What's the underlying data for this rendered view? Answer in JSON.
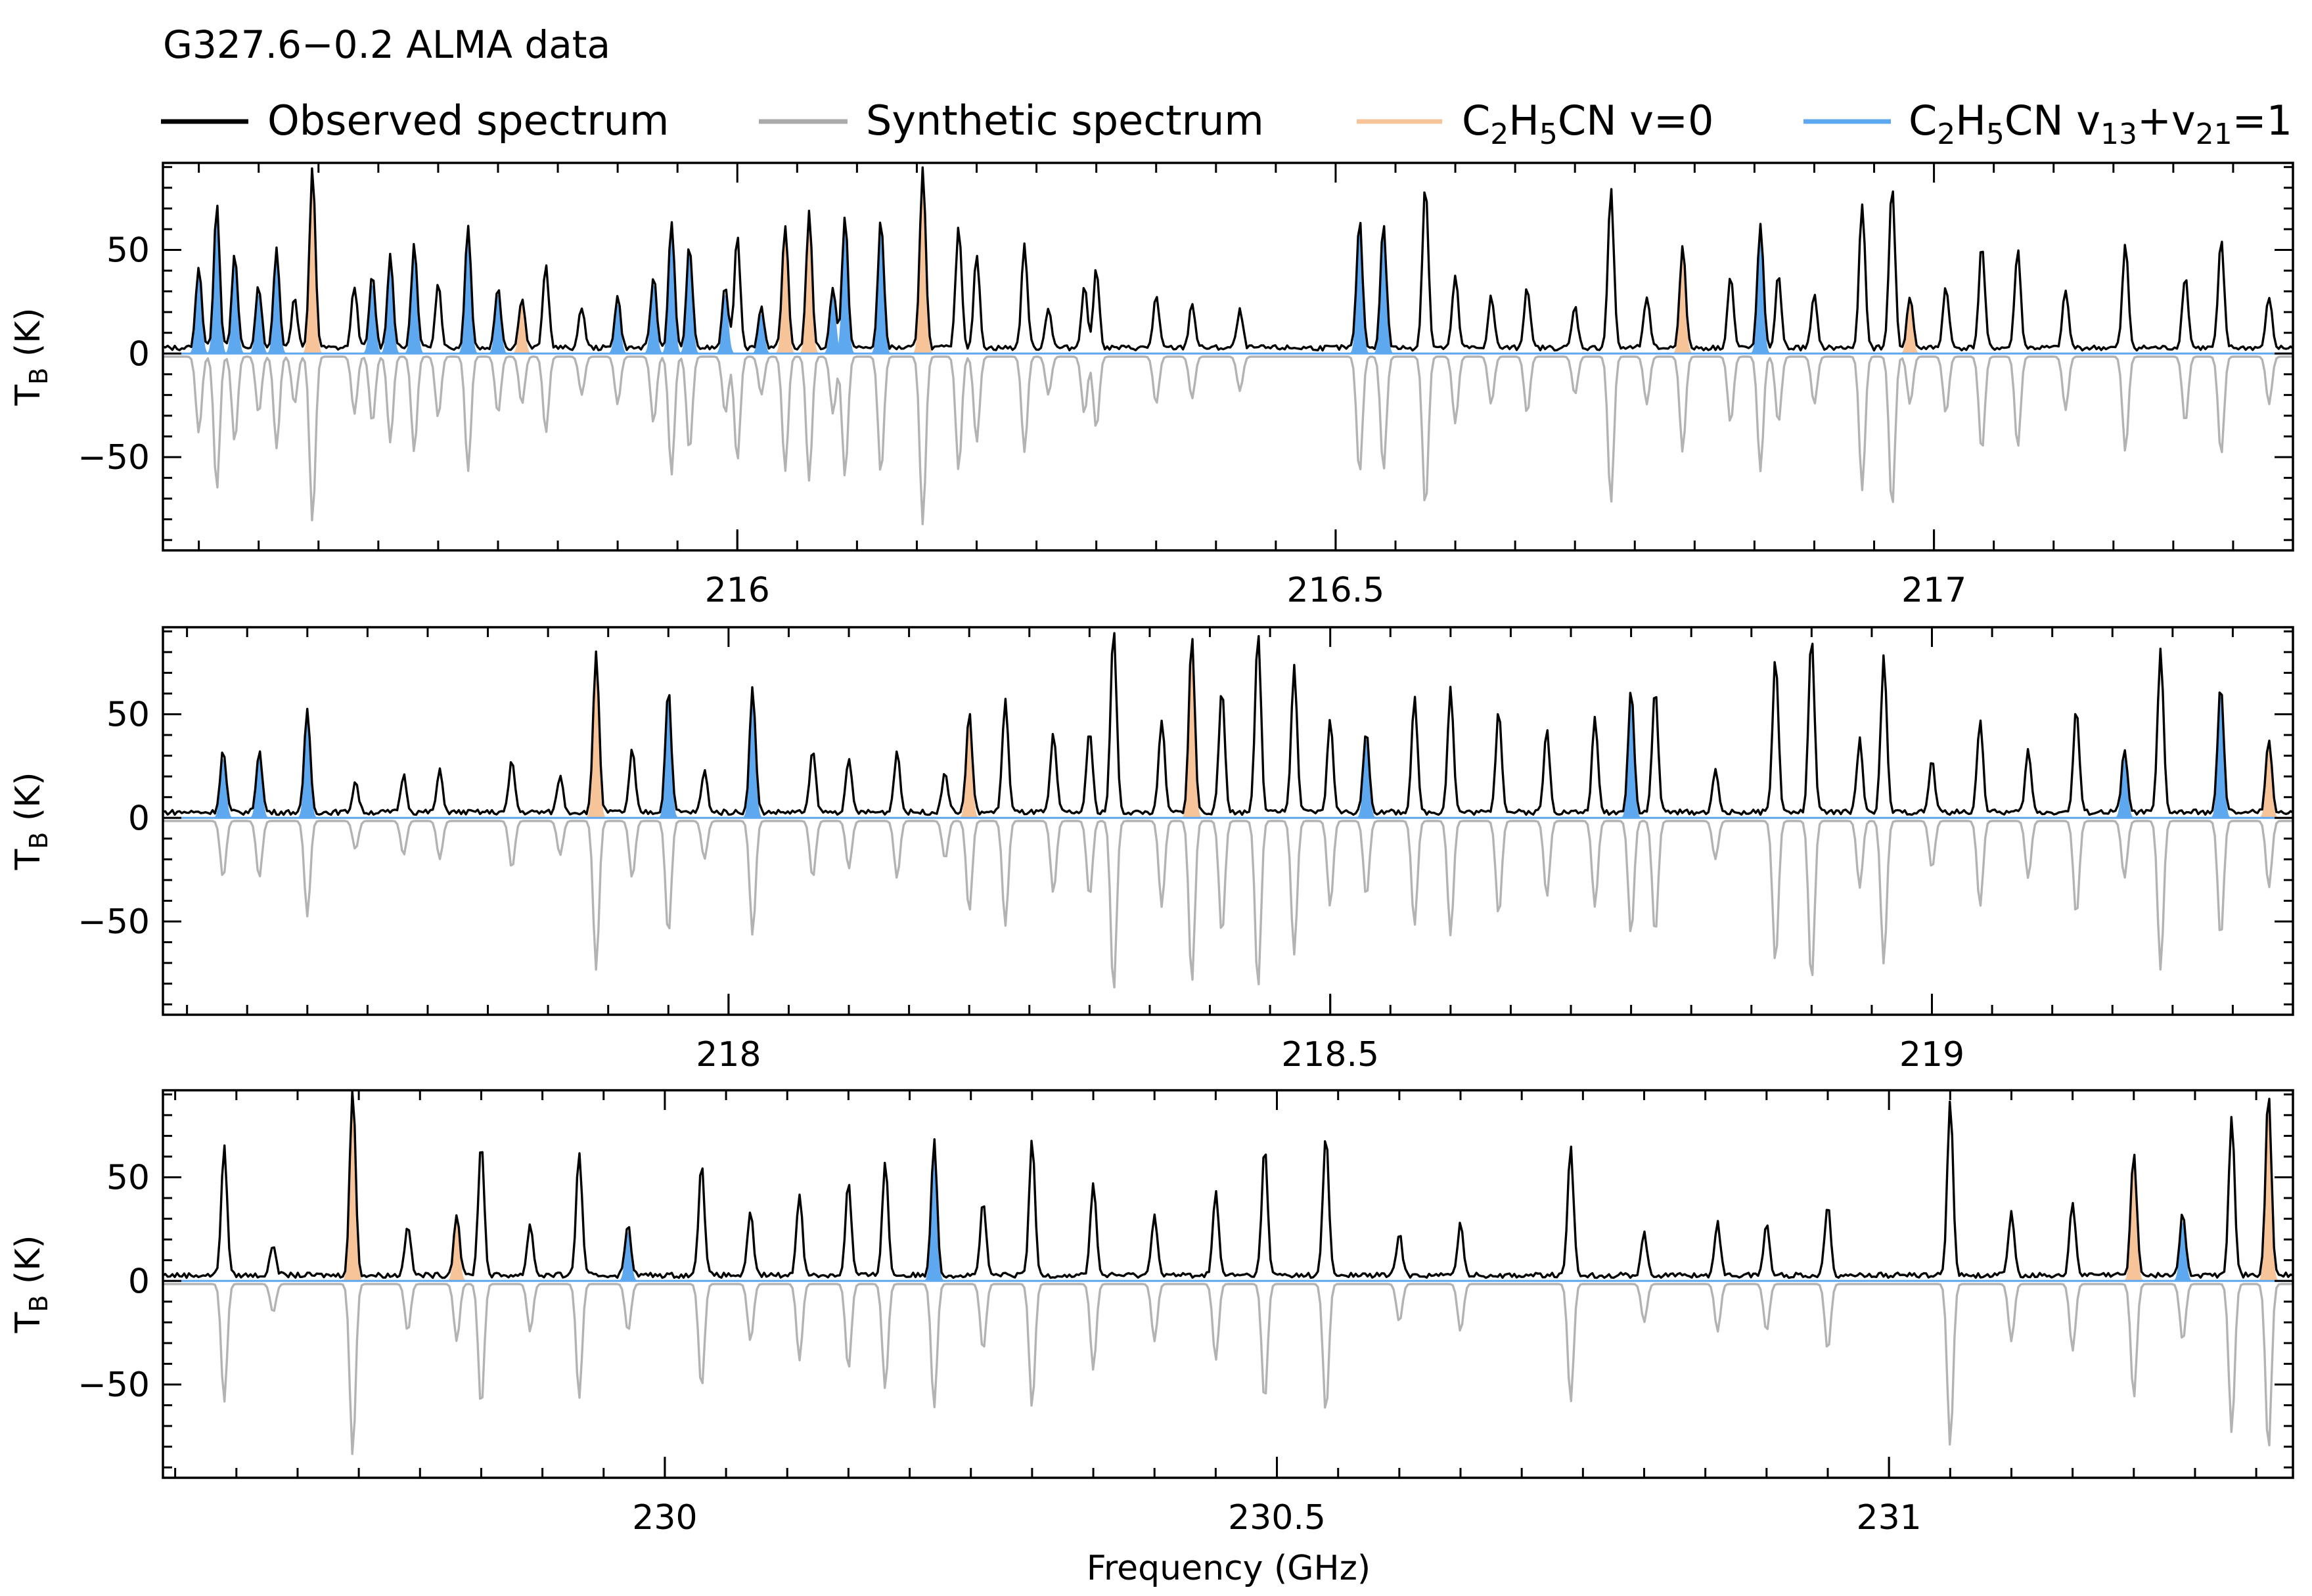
{
  "title": "G327.6−0.2 ALMA data",
  "legend": [
    {
      "label": "Observed spectrum",
      "color": "#000000"
    },
    {
      "label": "Synthetic spectrum",
      "color": "#aaaaaa"
    },
    {
      "label": "C2H5CN v=0",
      "color": "#f7c49a",
      "base": "C",
      "sub1": "2",
      "mid": "H",
      "sub2": "5",
      "tail": "CN v=0"
    },
    {
      "label": "C2H5CN v13+v21=1",
      "color": "#5ea8f0"
    }
  ],
  "colors": {
    "observed": "#000000",
    "synthetic": "#b3b3b3",
    "v0": "#f7c49a",
    "v1321": "#5ea8f0"
  },
  "xlabel": "Frequency (GHz)",
  "ylabel": "T_B (K)",
  "chart_data": [
    {
      "type": "line",
      "xlim": [
        215.52,
        217.3
      ],
      "ylim": [
        -95,
        92
      ],
      "yticks": [
        50,
        0,
        -50
      ],
      "ytick_labels": [
        "50",
        "0",
        "−50"
      ],
      "xticks": [
        216,
        216.5,
        217
      ],
      "xtick_labels": [
        "216",
        "216.5",
        "217"
      ],
      "peaks": [
        [
          215.55,
          40,
          "blue"
        ],
        [
          215.565,
          70,
          "blue"
        ],
        [
          215.58,
          45,
          "blue"
        ],
        [
          215.6,
          30,
          "blue"
        ],
        [
          215.615,
          48,
          "blue"
        ],
        [
          215.63,
          25,
          "black"
        ],
        [
          215.645,
          87,
          "orange"
        ],
        [
          215.68,
          30,
          "black"
        ],
        [
          215.695,
          35,
          "blue"
        ],
        [
          215.71,
          45,
          "blue"
        ],
        [
          215.73,
          50,
          "blue"
        ],
        [
          215.75,
          32,
          "black"
        ],
        [
          215.775,
          60,
          "blue"
        ],
        [
          215.8,
          30,
          "blue"
        ],
        [
          215.82,
          25,
          "orange"
        ],
        [
          215.84,
          40,
          "black"
        ],
        [
          215.87,
          20,
          "black"
        ],
        [
          215.9,
          25,
          "blue"
        ],
        [
          215.93,
          35,
          "blue"
        ],
        [
          215.945,
          62,
          "blue"
        ],
        [
          215.96,
          50,
          "blue"
        ],
        [
          215.99,
          30,
          "blue"
        ],
        [
          216.0,
          55,
          "black"
        ],
        [
          216.02,
          20,
          "blue"
        ],
        [
          216.04,
          60,
          "orange"
        ],
        [
          216.06,
          65,
          "orange"
        ],
        [
          216.08,
          30,
          "blue"
        ],
        [
          216.09,
          63,
          "blue"
        ],
        [
          216.12,
          62,
          "blue"
        ],
        [
          216.155,
          88,
          "orange"
        ],
        [
          216.185,
          60,
          "black"
        ],
        [
          216.2,
          45,
          "black"
        ],
        [
          216.24,
          50,
          "black"
        ],
        [
          216.26,
          20,
          "black"
        ],
        [
          216.29,
          30,
          "black"
        ],
        [
          216.3,
          38,
          "black"
        ],
        [
          216.35,
          25,
          "black"
        ],
        [
          216.38,
          22,
          "black"
        ],
        [
          216.42,
          18,
          "black"
        ],
        [
          216.52,
          62,
          "blue"
        ],
        [
          216.54,
          60,
          "blue"
        ],
        [
          216.575,
          80,
          "black"
        ],
        [
          216.6,
          35,
          "black"
        ],
        [
          216.63,
          25,
          "black"
        ],
        [
          216.66,
          30,
          "black"
        ],
        [
          216.7,
          20,
          "black"
        ],
        [
          216.73,
          77,
          "black"
        ],
        [
          216.76,
          25,
          "black"
        ],
        [
          216.79,
          50,
          "orange"
        ],
        [
          216.83,
          35,
          "black"
        ],
        [
          216.855,
          60,
          "blue"
        ],
        [
          216.87,
          35,
          "black"
        ],
        [
          216.9,
          25,
          "black"
        ],
        [
          216.94,
          70,
          "black"
        ],
        [
          216.965,
          80,
          "black"
        ],
        [
          216.98,
          25,
          "orange"
        ],
        [
          217.01,
          30,
          "black"
        ],
        [
          217.04,
          50,
          "black"
        ],
        [
          217.07,
          48,
          "black"
        ],
        [
          217.11,
          28,
          "black"
        ],
        [
          217.16,
          50,
          "black"
        ],
        [
          217.21,
          35,
          "black"
        ],
        [
          217.24,
          52,
          "black"
        ],
        [
          217.28,
          25,
          "black"
        ]
      ]
    },
    {
      "type": "line",
      "xlim": [
        217.53,
        219.3
      ],
      "ylim": [
        -95,
        92
      ],
      "yticks": [
        50,
        0,
        -50
      ],
      "ytick_labels": [
        "50",
        "0",
        "−50"
      ],
      "xticks": [
        218,
        218.5,
        219
      ],
      "xtick_labels": [
        "218",
        "218.5",
        "219"
      ],
      "peaks": [
        [
          217.58,
          30,
          "blue"
        ],
        [
          217.61,
          30,
          "blue"
        ],
        [
          217.65,
          50,
          "blue"
        ],
        [
          217.69,
          15,
          "black"
        ],
        [
          217.73,
          18,
          "black"
        ],
        [
          217.76,
          20,
          "black"
        ],
        [
          217.82,
          25,
          "black"
        ],
        [
          217.86,
          18,
          "black"
        ],
        [
          217.89,
          78,
          "orange"
        ],
        [
          217.92,
          30,
          "black"
        ],
        [
          217.95,
          60,
          "blue"
        ],
        [
          217.98,
          20,
          "black"
        ],
        [
          218.02,
          60,
          "blue"
        ],
        [
          218.07,
          30,
          "black"
        ],
        [
          218.1,
          25,
          "black"
        ],
        [
          218.14,
          30,
          "black"
        ],
        [
          218.18,
          20,
          "black"
        ],
        [
          218.2,
          48,
          "orange"
        ],
        [
          218.23,
          55,
          "black"
        ],
        [
          218.27,
          38,
          "black"
        ],
        [
          218.3,
          40,
          "black"
        ],
        [
          218.32,
          90,
          "black"
        ],
        [
          218.36,
          45,
          "black"
        ],
        [
          218.385,
          85,
          "orange"
        ],
        [
          218.41,
          60,
          "black"
        ],
        [
          218.44,
          88,
          "black"
        ],
        [
          218.47,
          70,
          "black"
        ],
        [
          218.5,
          45,
          "black"
        ],
        [
          218.53,
          40,
          "blue"
        ],
        [
          218.57,
          55,
          "black"
        ],
        [
          218.6,
          60,
          "black"
        ],
        [
          218.64,
          50,
          "black"
        ],
        [
          218.68,
          40,
          "black"
        ],
        [
          218.72,
          45,
          "black"
        ],
        [
          218.75,
          60,
          "blue"
        ],
        [
          218.77,
          60,
          "black"
        ],
        [
          218.82,
          20,
          "black"
        ],
        [
          218.87,
          75,
          "black"
        ],
        [
          218.9,
          85,
          "black"
        ],
        [
          218.94,
          35,
          "black"
        ],
        [
          218.96,
          75,
          "black"
        ],
        [
          219.0,
          25,
          "black"
        ],
        [
          219.04,
          45,
          "black"
        ],
        [
          219.08,
          30,
          "black"
        ],
        [
          219.12,
          50,
          "black"
        ],
        [
          219.16,
          30,
          "blue"
        ],
        [
          219.19,
          78,
          "black"
        ],
        [
          219.24,
          62,
          "blue"
        ],
        [
          219.28,
          35,
          "orange"
        ]
      ]
    },
    {
      "type": "line",
      "xlim": [
        229.59,
        231.33
      ],
      "ylim": [
        -95,
        92
      ],
      "yticks": [
        50,
        0,
        -50
      ],
      "ytick_labels": [
        "50",
        "0",
        "−50"
      ],
      "xticks": [
        230,
        230.5,
        231
      ],
      "xtick_labels": [
        "230",
        "230.5",
        "231"
      ],
      "peaks": [
        [
          229.64,
          62,
          "black"
        ],
        [
          229.68,
          15,
          "black"
        ],
        [
          229.745,
          90,
          "orange"
        ],
        [
          229.79,
          25,
          "black"
        ],
        [
          229.83,
          30,
          "orange"
        ],
        [
          229.85,
          65,
          "black"
        ],
        [
          229.89,
          25,
          "black"
        ],
        [
          229.93,
          60,
          "black"
        ],
        [
          229.97,
          25,
          "blue"
        ],
        [
          230.03,
          55,
          "black"
        ],
        [
          230.07,
          30,
          "black"
        ],
        [
          230.11,
          40,
          "black"
        ],
        [
          230.15,
          45,
          "black"
        ],
        [
          230.18,
          55,
          "black"
        ],
        [
          230.22,
          65,
          "blue"
        ],
        [
          230.26,
          35,
          "black"
        ],
        [
          230.3,
          65,
          "black"
        ],
        [
          230.35,
          45,
          "black"
        ],
        [
          230.4,
          30,
          "black"
        ],
        [
          230.45,
          40,
          "black"
        ],
        [
          230.49,
          62,
          "black"
        ],
        [
          230.54,
          68,
          "black"
        ],
        [
          230.6,
          20,
          "black"
        ],
        [
          230.65,
          25,
          "black"
        ],
        [
          230.74,
          62,
          "black"
        ],
        [
          230.8,
          20,
          "black"
        ],
        [
          230.86,
          25,
          "black"
        ],
        [
          230.9,
          25,
          "black"
        ],
        [
          230.95,
          35,
          "black"
        ],
        [
          231.05,
          85,
          "black"
        ],
        [
          231.1,
          30,
          "black"
        ],
        [
          231.15,
          35,
          "black"
        ],
        [
          231.2,
          60,
          "orange"
        ],
        [
          231.24,
          30,
          "blue"
        ],
        [
          231.28,
          78,
          "black"
        ],
        [
          231.31,
          88,
          "orange"
        ]
      ]
    }
  ]
}
